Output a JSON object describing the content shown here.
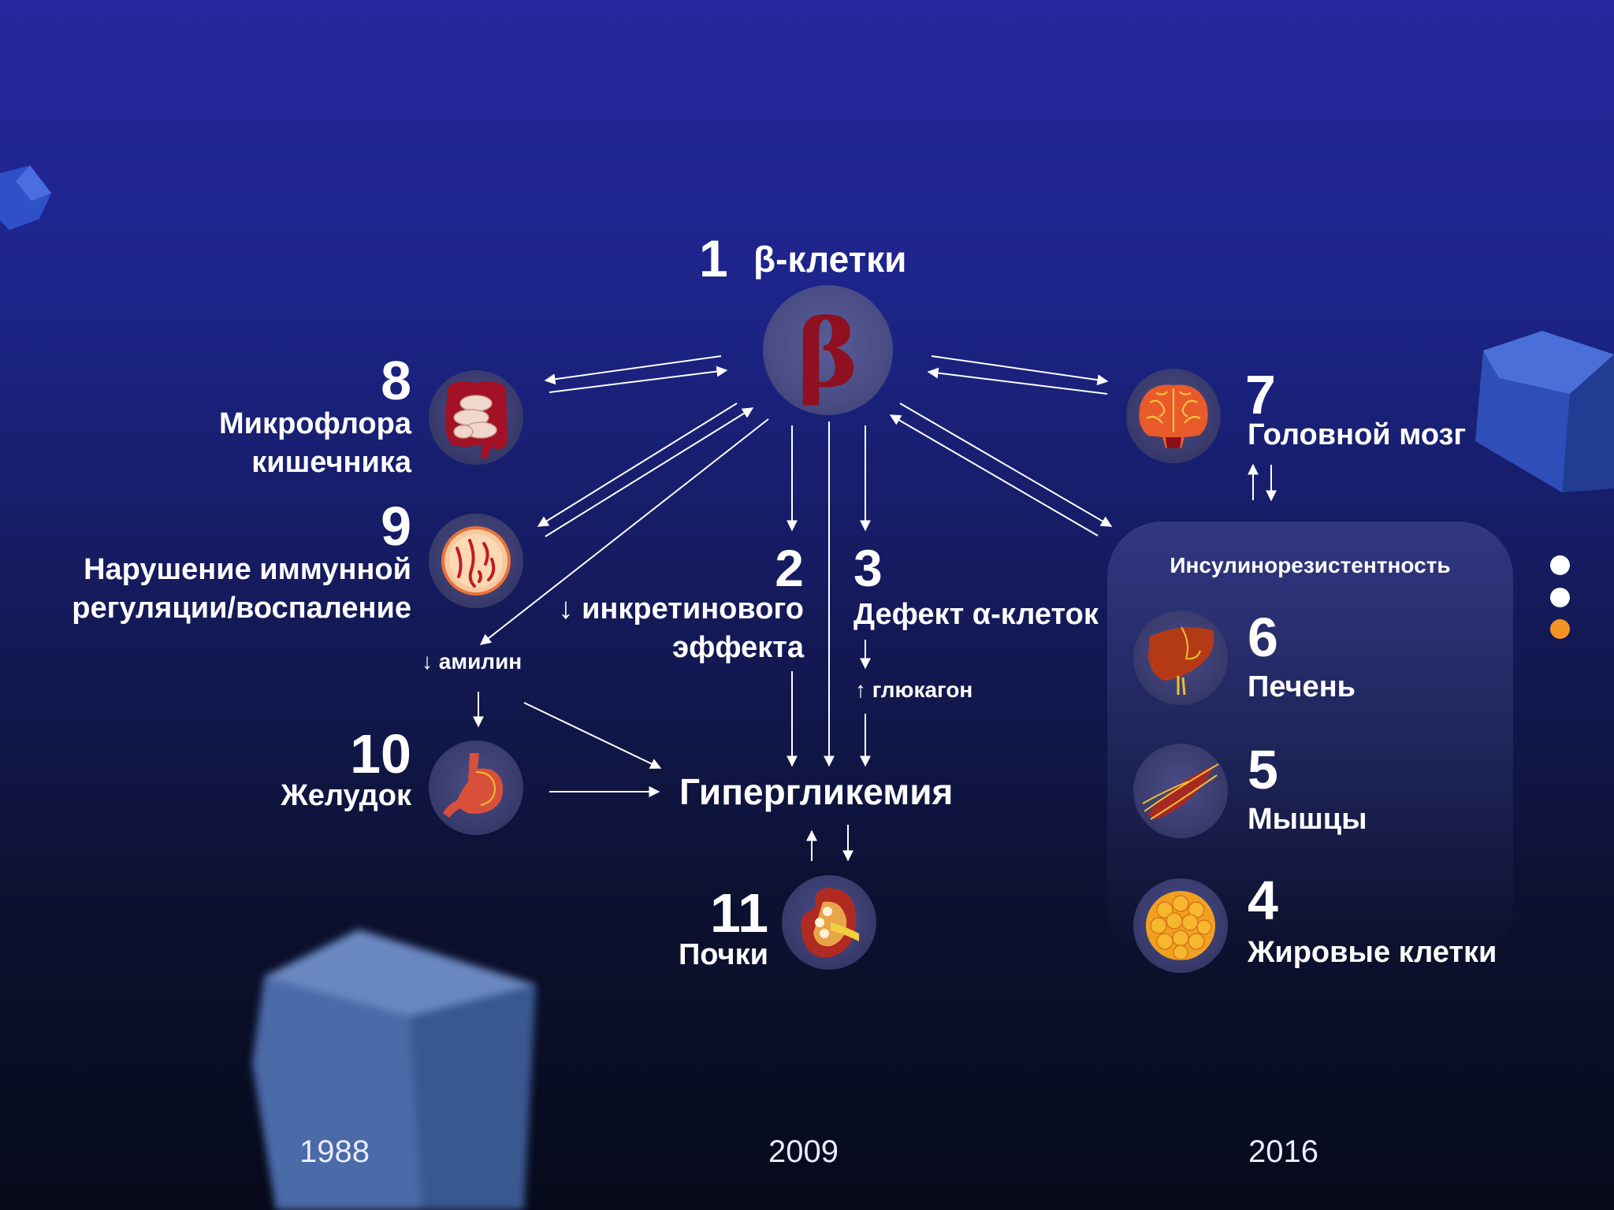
{
  "colors": {
    "beta_letter": "#8f1020",
    "accent_dot": "#f39426",
    "dot": "#ffffff",
    "arrow": "#ffffff"
  },
  "nodes": {
    "n1": {
      "num": "1",
      "label": "β-клетки",
      "icon": "beta-symbol-icon",
      "symbol": "β"
    },
    "n2": {
      "num": "2",
      "label_line1": "↓ инкретинового",
      "label_line2": "эффекта"
    },
    "n3": {
      "num": "3",
      "label": "Дефект α-клеток",
      "sub": "↑ глюкагон"
    },
    "n4": {
      "num": "4",
      "label": "Жировые клетки",
      "icon": "fat-cells-icon"
    },
    "n5": {
      "num": "5",
      "label": "Мышцы",
      "icon": "muscle-icon"
    },
    "n6": {
      "num": "6",
      "label": "Печень",
      "icon": "liver-icon"
    },
    "n7": {
      "num": "7",
      "label": "Головной мозг",
      "icon": "brain-icon"
    },
    "n8": {
      "num": "8",
      "label_line1": "Микрофлора",
      "label_line2": "кишечника",
      "icon": "intestine-icon"
    },
    "n9": {
      "num": "9",
      "label_line1": "Нарушение иммунной",
      "label_line2": "регуляции/воспаление",
      "icon": "cell-inflammation-icon"
    },
    "n10": {
      "num": "10",
      "label": "Желудок",
      "icon": "stomach-icon"
    },
    "n11": {
      "num": "11",
      "label": "Почки",
      "icon": "kidney-icon"
    }
  },
  "amylin": "↓ амилин",
  "center": "Гипергликемия",
  "insulin_resistance": "Инсулинорезистентность",
  "timeline": {
    "y1": "1988",
    "y2": "2009",
    "y3": "2016"
  },
  "pager": {
    "count": 3,
    "active": 3
  }
}
